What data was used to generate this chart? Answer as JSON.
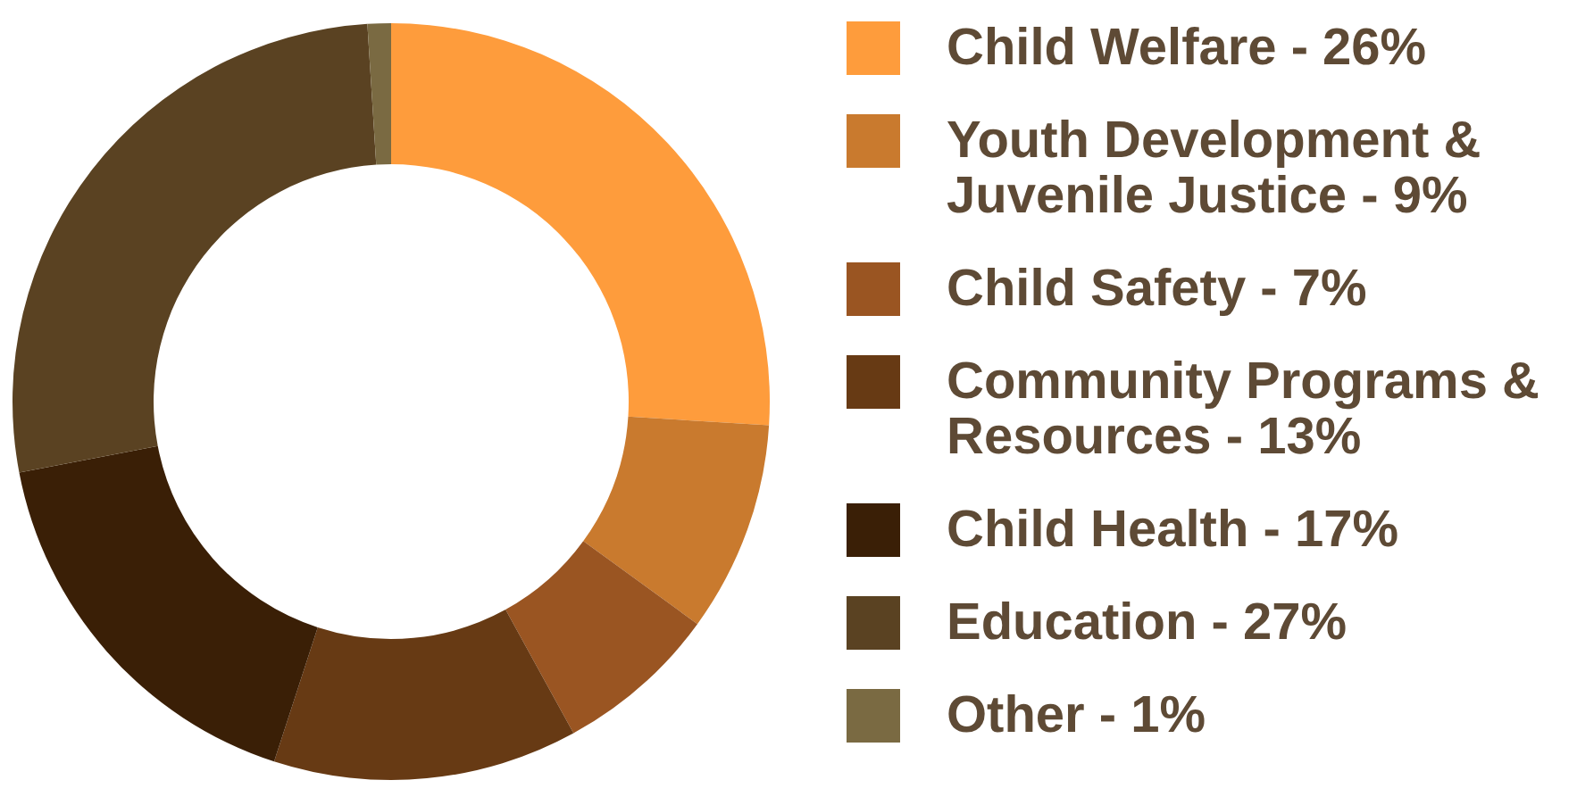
{
  "chart_data": {
    "type": "donut",
    "categories": [
      "Child Welfare - 26%",
      "Youth Development & Juvenile Justice - 9%",
      "Child Safety - 7%",
      "Community Programs & Resources - 13%",
      "Child Health - 17%",
      "Education - 27%",
      "Other - 1%"
    ],
    "values": [
      26,
      9,
      7,
      13,
      17,
      27,
      1
    ],
    "colors": [
      "#fe9c3c",
      "#c97a2e",
      "#9a5522",
      "#673a14",
      "#3a1f06",
      "#5a4222",
      "#7a6a42"
    ],
    "legend": "right"
  }
}
